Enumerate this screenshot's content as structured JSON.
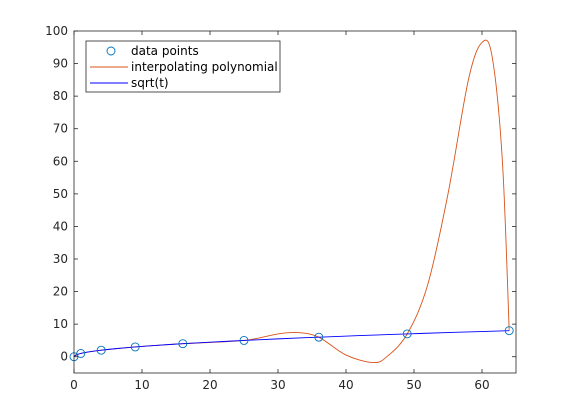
{
  "chart_data": {
    "type": "line",
    "title": "",
    "xlabel": "",
    "ylabel": "",
    "xlim": [
      0,
      65
    ],
    "ylim": [
      -5,
      100
    ],
    "xticks": [
      0,
      10,
      20,
      30,
      40,
      50,
      60
    ],
    "yticks": [
      0,
      10,
      20,
      30,
      40,
      50,
      60,
      70,
      80,
      90,
      100
    ],
    "grid": false,
    "legend_position": "top-left",
    "colors": {
      "data_points": "#0072BD",
      "polynomial": "#D95319",
      "sqrt": "#0000FF",
      "axes": "#262626"
    },
    "series": [
      {
        "name": "data points",
        "style": "markers",
        "x": [
          0,
          1,
          4,
          9,
          16,
          25,
          36,
          49,
          64
        ],
        "y": [
          0,
          1,
          2,
          3,
          4,
          5,
          6,
          7,
          8
        ]
      },
      {
        "name": "interpolating polynomial",
        "style": "line",
        "x": [
          0,
          1,
          4,
          9,
          16,
          25,
          30,
          33,
          36,
          40,
          44,
          46,
          49,
          52,
          55,
          58,
          60,
          61.5,
          63,
          64
        ],
        "y": [
          0,
          1,
          2,
          3,
          4,
          5,
          7,
          7.4,
          6,
          0.5,
          -1.8,
          0,
          7,
          22,
          50,
          85,
          96.5,
          92,
          60,
          8
        ]
      },
      {
        "name": "sqrt(t)",
        "style": "line",
        "x": [
          0,
          0.25,
          1,
          2,
          4,
          6,
          9,
          12,
          16,
          20,
          25,
          30,
          36,
          42,
          49,
          56,
          64
        ],
        "y": [
          0,
          0.5,
          1,
          1.414,
          2,
          2.449,
          3,
          3.464,
          4,
          4.472,
          5,
          5.477,
          6,
          6.481,
          7,
          7.483,
          8
        ]
      }
    ]
  }
}
